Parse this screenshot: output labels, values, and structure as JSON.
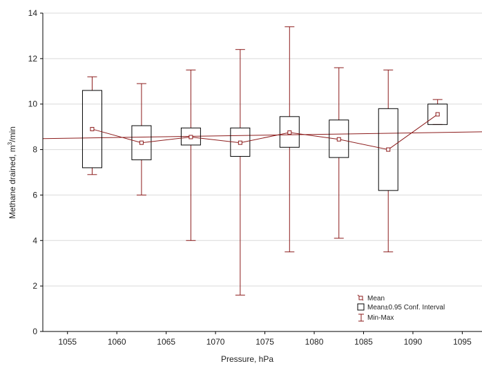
{
  "chart_data": {
    "type": "box",
    "xlabel": "Pressure, hPa",
    "ylabel_main": "Methane drained, m",
    "ylabel_sup": "3",
    "ylabel_tail": "/min",
    "xlim": [
      1052.5,
      1097
    ],
    "ylim": [
      0,
      14
    ],
    "xticks": [
      1055,
      1060,
      1065,
      1070,
      1075,
      1080,
      1085,
      1090,
      1095
    ],
    "yticks": [
      0,
      2,
      4,
      6,
      8,
      10,
      12,
      14
    ],
    "grid": true,
    "legend_position": "bottom-right",
    "legend": {
      "mean": "Mean",
      "ci": "Mean±0.95 Conf. Interval",
      "minmax": "Min-Max"
    },
    "groups": [
      {
        "x": 1057.5,
        "mean": 8.9,
        "ci_low": 7.2,
        "ci_high": 10.6,
        "min": 6.9,
        "max": 11.2
      },
      {
        "x": 1062.5,
        "mean": 8.3,
        "ci_low": 7.55,
        "ci_high": 9.05,
        "min": 6.0,
        "max": 10.9
      },
      {
        "x": 1067.5,
        "mean": 8.55,
        "ci_low": 8.2,
        "ci_high": 8.95,
        "min": 4.0,
        "max": 11.5
      },
      {
        "x": 1072.5,
        "mean": 8.3,
        "ci_low": 7.7,
        "ci_high": 8.95,
        "min": 1.6,
        "max": 12.4
      },
      {
        "x": 1077.5,
        "mean": 8.75,
        "ci_low": 8.1,
        "ci_high": 9.45,
        "min": 3.5,
        "max": 13.4
      },
      {
        "x": 1082.5,
        "mean": 8.45,
        "ci_low": 7.65,
        "ci_high": 9.3,
        "min": 4.1,
        "max": 11.6
      },
      {
        "x": 1087.5,
        "mean": 8.0,
        "ci_low": 6.2,
        "ci_high": 9.8,
        "min": 3.5,
        "max": 11.5
      },
      {
        "x": 1092.5,
        "mean": 9.55,
        "ci_low": 9.1,
        "ci_high": 10.0,
        "min": 9.1,
        "max": 10.2
      }
    ],
    "trend": {
      "x": [
        1052.5,
        1097
      ],
      "y": [
        8.48,
        8.78
      ]
    },
    "colors": {
      "series": "#8b1a1a",
      "box": "#000000",
      "grid": "#d9d9d9",
      "axis": "#000000"
    }
  }
}
